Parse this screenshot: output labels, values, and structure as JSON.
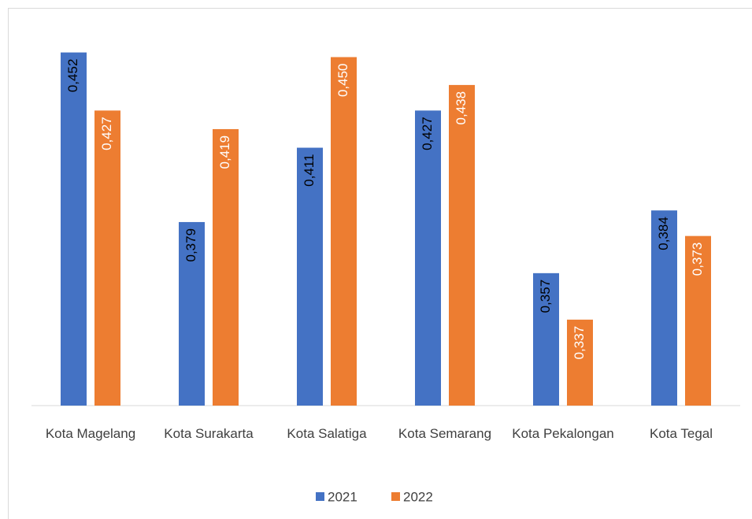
{
  "chart_data": {
    "type": "bar",
    "categories": [
      "Kota Magelang",
      "Kota Surakarta",
      "Kota Salatiga",
      "Kota Semarang",
      "Kota Pekalongan",
      "Kota Tegal"
    ],
    "series": [
      {
        "name": "2021",
        "color": "#4472c4",
        "values": [
          0.452,
          0.379,
          0.411,
          0.427,
          0.357,
          0.384
        ],
        "value_labels": [
          "0,452",
          "0,379",
          "0,411",
          "0,427",
          "0,357",
          "0,384"
        ]
      },
      {
        "name": "2022",
        "color": "#ed7d31",
        "values": [
          0.427,
          0.419,
          0.45,
          0.438,
          0.337,
          0.373
        ],
        "value_labels": [
          "0,427",
          "0,419",
          "0,450",
          "0,438",
          "0,337",
          "0,373"
        ]
      }
    ],
    "ylim": [
      0.3,
      0.46
    ],
    "legend": "bottom"
  }
}
